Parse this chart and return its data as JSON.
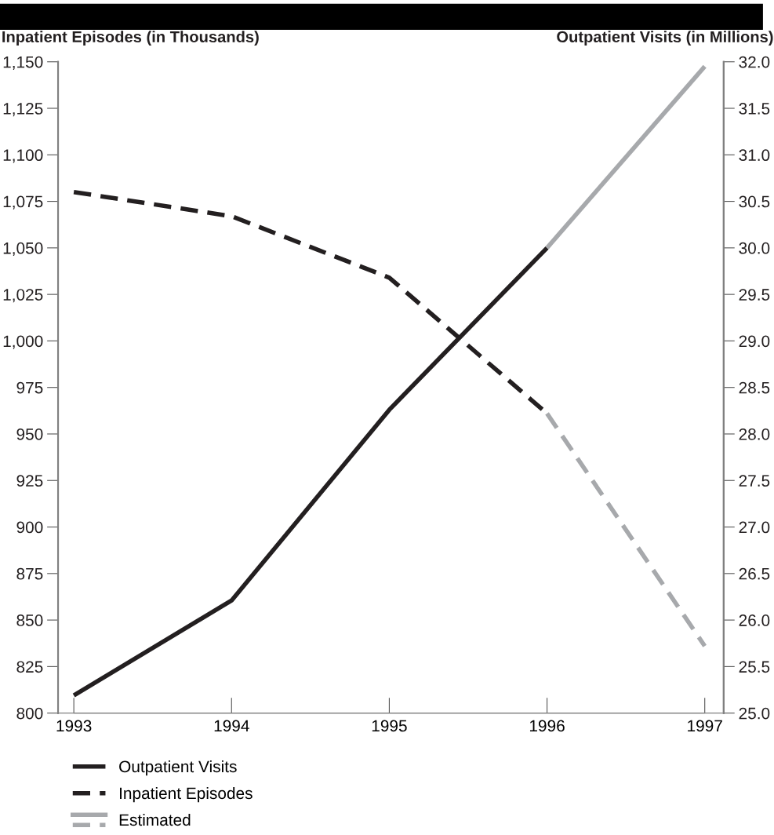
{
  "chart_data": {
    "type": "line",
    "ylabel": "Inpatient Episodes (in Thousands)",
    "y2label": "Outpatient Visits (in Millions)",
    "xlim": [
      1992.9,
      1997.12
    ],
    "xticks": [
      1993,
      1994,
      1995,
      1996,
      1997
    ],
    "ylim": [
      800,
      1150
    ],
    "yticks": [
      {
        "value": 800,
        "label": "800"
      },
      {
        "value": 825,
        "label": "825"
      },
      {
        "value": 850,
        "label": "850"
      },
      {
        "value": 875,
        "label": "875"
      },
      {
        "value": 900,
        "label": "900"
      },
      {
        "value": 925,
        "label": "925"
      },
      {
        "value": 950,
        "label": "950"
      },
      {
        "value": 975,
        "label": "975"
      },
      {
        "value": 1000,
        "label": "1,000"
      },
      {
        "value": 1025,
        "label": "1,025"
      },
      {
        "value": 1050,
        "label": "1,050"
      },
      {
        "value": 1075,
        "label": "1,075"
      },
      {
        "value": 1100,
        "label": "1,100"
      },
      {
        "value": 1125,
        "label": "1,125"
      },
      {
        "value": 1150,
        "label": "1,150"
      }
    ],
    "y2lim": [
      25,
      32
    ],
    "y2ticks": [
      {
        "value": 25,
        "label": "25.0"
      },
      {
        "value": 25.5,
        "label": "25.5"
      },
      {
        "value": 26,
        "label": "26.0"
      },
      {
        "value": 26.5,
        "label": "26.5"
      },
      {
        "value": 27,
        "label": "27.0"
      },
      {
        "value": 27.5,
        "label": "27.5"
      },
      {
        "value": 28,
        "label": "28.0"
      },
      {
        "value": 28.5,
        "label": "28.5"
      },
      {
        "value": 29,
        "label": "29.0"
      },
      {
        "value": 29.5,
        "label": "29.5"
      },
      {
        "value": 30,
        "label": "30.0"
      },
      {
        "value": 30.5,
        "label": "30.5"
      },
      {
        "value": 31,
        "label": "31.0"
      },
      {
        "value": 31.5,
        "label": "31.5"
      },
      {
        "value": 32,
        "label": "32.0"
      }
    ],
    "grid": false,
    "legend": "bottom left",
    "marker": "none",
    "series": [
      {
        "name": "Outpatient Visits",
        "color": "#231f20",
        "axis": "y2",
        "line_style": "solid",
        "x": [
          1993,
          1994,
          1995,
          1996
        ],
        "values": [
          25.19,
          26.21,
          28.26,
          30.0
        ]
      },
      {
        "name": "Inpatient Episodes",
        "color": "#231f20",
        "line_style": "dashed",
        "x": [
          1993,
          1994,
          1995,
          1996
        ],
        "values": [
          1080,
          1067,
          1034,
          961
        ]
      },
      {
        "name": "Estimated",
        "color": "#a7a9ac",
        "axis": "y2",
        "line_style": "solid",
        "x": [
          1996,
          1997
        ],
        "values": [
          30.0,
          31.95
        ]
      },
      {
        "color": "#a7a9ac",
        "line_style": "dashed",
        "x": [
          1996,
          1997
        ],
        "values": [
          961,
          836
        ]
      }
    ]
  }
}
